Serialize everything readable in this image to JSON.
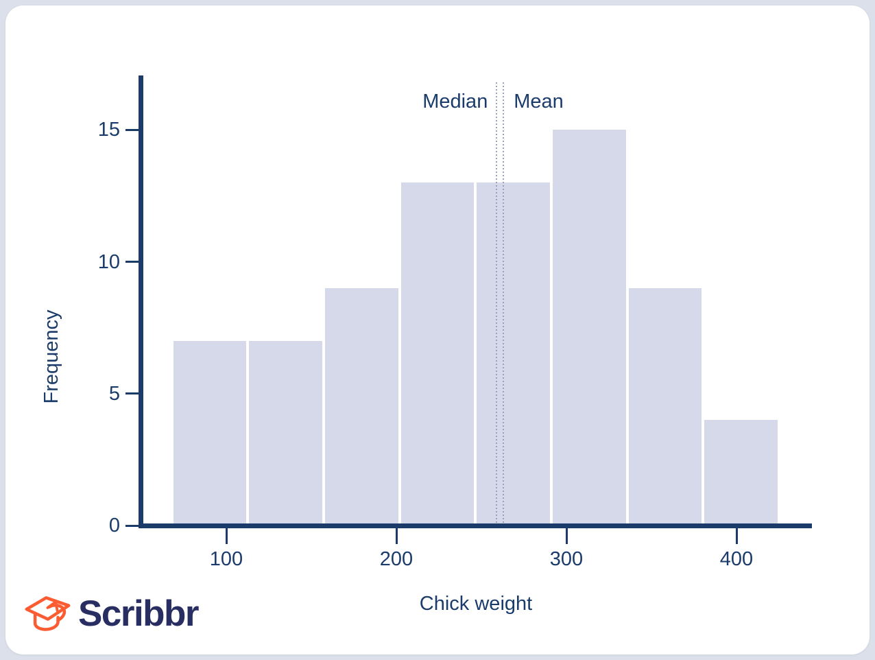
{
  "page": {
    "background": "#dce0ea",
    "card_background": "#ffffff"
  },
  "logo": {
    "brand": "Scribbr",
    "icon": "graduation-cap-arrow-icon",
    "icon_color": "#fb5c32",
    "text_color": "#292e62"
  },
  "chart_data": {
    "type": "bar",
    "subtype": "histogram",
    "title": "",
    "xlabel": "Chick weight",
    "ylabel": "Frequency",
    "x_ticks": [
      100,
      200,
      300,
      400
    ],
    "y_ticks": [
      0,
      5,
      10,
      15
    ],
    "xlim": [
      48,
      445
    ],
    "ylim": [
      0,
      17
    ],
    "bin_edges": [
      68,
      112.6,
      157.3,
      201.9,
      246.5,
      291.1,
      335.8,
      380.4,
      425
    ],
    "counts": [
      7,
      7,
      9,
      13,
      13,
      15,
      9,
      4
    ],
    "annotations": [
      {
        "id": "median",
        "label": "Median",
        "x": 259,
        "label_side": "left"
      },
      {
        "id": "mean",
        "label": "Mean",
        "x": 263,
        "label_side": "right"
      }
    ],
    "grid": false,
    "legend_position": "none",
    "colors": {
      "bar_fill": "#d5d9e9",
      "axis": "#1b3c6b",
      "text": "#1b3c6b",
      "annotation_line": "#98a1bb"
    }
  }
}
